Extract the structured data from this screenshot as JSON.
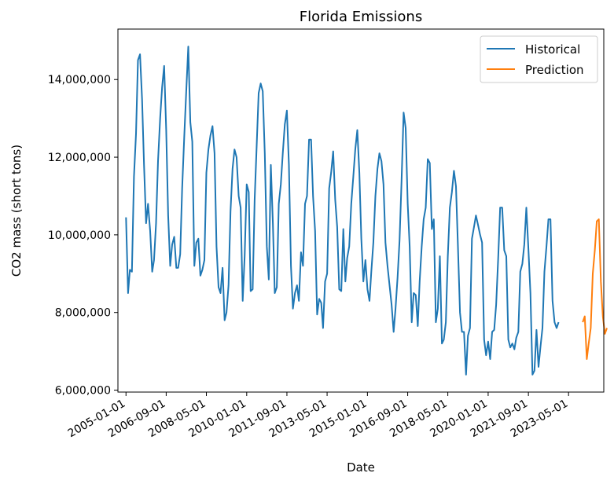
{
  "chart_data": {
    "type": "line",
    "title": "Florida Emissions",
    "xlabel": "Date",
    "ylabel": "CO2 mass (short tons)",
    "xlim": [
      "2004-09-01",
      "2024-10-15"
    ],
    "ylim": [
      5950000,
      15300000
    ],
    "x_ticks": [
      "2005-01-01",
      "2006-09-01",
      "2008-05-01",
      "2010-01-01",
      "2011-09-01",
      "2013-05-01",
      "2015-01-01",
      "2016-09-01",
      "2018-05-01",
      "2020-01-01",
      "2021-09-01",
      "2023-05-01"
    ],
    "y_ticks": [
      6000000,
      8000000,
      10000000,
      12000000,
      14000000
    ],
    "y_tick_labels": [
      "6,000,000",
      "8,000,000",
      "10,000,000",
      "12,000,000",
      "14,000,000"
    ],
    "legend_position": "top-right",
    "grid": false,
    "series": [
      {
        "name": "Historical",
        "color": "#1f77b4",
        "start": "2005-01",
        "values": [
          10450000,
          8500000,
          9100000,
          9050000,
          11500000,
          12600000,
          14500000,
          14650000,
          13500000,
          11800000,
          10300000,
          10800000,
          10100000,
          9050000,
          9350000,
          10300000,
          11900000,
          13000000,
          13800000,
          14350000,
          12700000,
          10500000,
          9200000,
          9750000,
          9950000,
          9150000,
          9150000,
          9500000,
          11200000,
          12500000,
          13700000,
          14850000,
          12900000,
          12400000,
          9200000,
          9800000,
          9900000,
          8950000,
          9100000,
          9350000,
          11600000,
          12200000,
          12550000,
          12800000,
          12100000,
          9700000,
          8650000,
          8500000,
          9150000,
          7800000,
          8000000,
          8700000,
          10600000,
          11700000,
          12200000,
          12000000,
          11000000,
          10700000,
          8300000,
          9450000,
          11300000,
          11100000,
          8550000,
          8600000,
          10900000,
          12300000,
          13650000,
          13900000,
          13700000,
          12100000,
          9700000,
          8850000,
          11800000,
          10300000,
          8500000,
          8650000,
          10800000,
          11300000,
          12100000,
          12850000,
          13200000,
          11800000,
          9200000,
          8100000,
          8500000,
          8700000,
          8300000,
          9550000,
          9200000,
          10800000,
          11000000,
          12450000,
          12450000,
          11000000,
          10100000,
          7950000,
          8350000,
          8250000,
          7600000,
          8800000,
          9000000,
          11200000,
          11600000,
          12150000,
          10900000,
          10200000,
          8600000,
          8550000,
          10150000,
          8800000,
          9400000,
          9700000,
          10800000,
          11500000,
          12200000,
          12700000,
          11600000,
          9900000,
          8800000,
          9350000,
          8600000,
          8300000,
          9050000,
          9800000,
          11000000,
          11700000,
          12100000,
          11900000,
          11300000,
          9800000,
          9200000,
          8700000,
          8200000,
          7500000,
          8100000,
          8900000,
          9850000,
          11400000,
          13150000,
          12750000,
          10800000,
          9700000,
          7750000,
          8500000,
          8450000,
          7650000,
          8800000,
          9700000,
          10400000,
          10700000,
          11950000,
          11850000,
          10150000,
          10400000,
          7750000,
          8100000,
          9450000,
          7200000,
          7300000,
          7750000,
          9450000,
          10700000,
          11100000,
          11650000,
          11250000,
          9700000,
          8000000,
          7500000,
          7500000,
          6400000,
          7400000,
          7600000,
          9900000,
          10200000,
          10500000,
          10250000,
          10000000,
          9800000,
          7300000,
          6900000,
          7250000,
          6800000,
          7500000,
          7550000,
          8200000,
          9400000,
          10700000,
          10700000,
          9600000,
          9450000,
          7300000,
          7100000,
          7200000,
          7050000,
          7350000,
          7500000,
          9050000,
          9250000,
          9750000,
          10700000,
          9650000,
          8500000,
          6400000,
          6500000,
          7550000,
          6600000,
          7100000,
          7600000,
          9050000,
          9700000,
          10400000,
          10400000,
          8300000,
          7750000,
          7600000,
          7750000
        ]
      },
      {
        "name": "Prediction",
        "color": "#ff7f0e",
        "start": "2023-12",
        "values": [
          7750000,
          7900000,
          6800000,
          7200000,
          7600000,
          9000000,
          9600000,
          10350000,
          10400000,
          8800000,
          7900000,
          7450000,
          7600000
        ]
      }
    ]
  }
}
